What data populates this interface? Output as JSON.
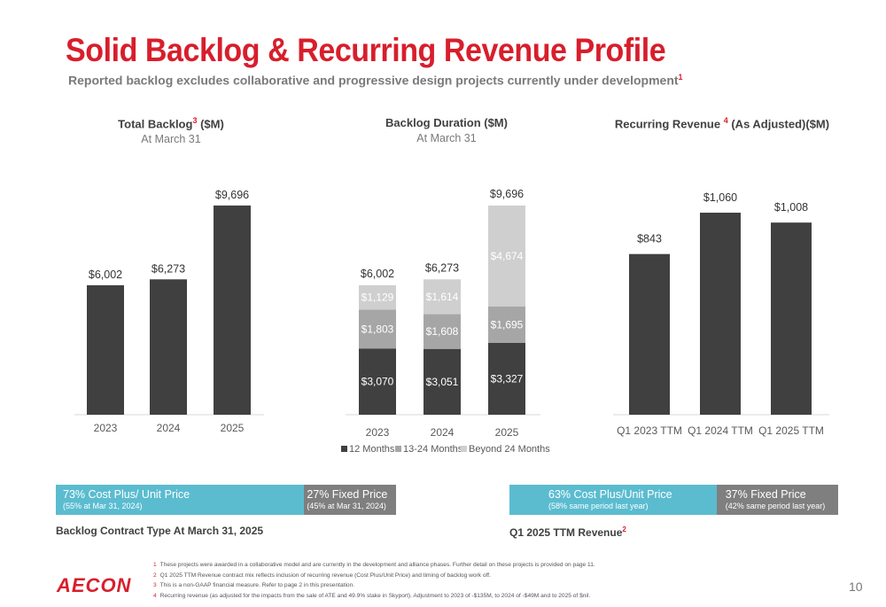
{
  "title": "Solid Backlog & Recurring Revenue Profile",
  "subtitle": "Reported backlog excludes collaborative and progressive design projects currently under development",
  "subtitle_note": "1",
  "colors": {
    "dark": "#404040",
    "mid": "#a6a6a6",
    "light": "#d0cfd0",
    "accent": "#d81e2c",
    "teal": "#5bbcd0",
    "gray": "#7f7f7f"
  },
  "chart_data": [
    {
      "type": "bar",
      "title": "Total Backlog",
      "title_note": "3",
      "title_suffix": " ($M)",
      "subtitle": "At March 31",
      "categories": [
        "2023",
        "2024",
        "2025"
      ],
      "values": [
        6002,
        6273,
        9696
      ],
      "labels": [
        "$6,002",
        "$6,273",
        "$9,696"
      ],
      "ylim": [
        0,
        10000
      ]
    },
    {
      "type": "bar",
      "stacked": true,
      "title": "Backlog Duration ($M)",
      "subtitle": "At March 31",
      "categories": [
        "2023",
        "2024",
        "2025"
      ],
      "series": [
        {
          "name": "12 Months",
          "values": [
            3070,
            3051,
            3327
          ],
          "labels": [
            "$3,070",
            "$3,051",
            "$3,327"
          ]
        },
        {
          "name": "13-24 Months",
          "values": [
            1803,
            1608,
            1695
          ],
          "labels": [
            "$1,803",
            "$1,608",
            "$1,695"
          ]
        },
        {
          "name": "Beyond 24 Months",
          "values": [
            1129,
            1614,
            4674
          ],
          "labels": [
            "$1,129",
            "$1,614",
            "$4,674"
          ]
        }
      ],
      "totals": [
        "$6,002",
        "$6,273",
        "$9,696"
      ],
      "legend": "bottom",
      "ylim": [
        0,
        10000
      ]
    },
    {
      "type": "bar",
      "title": "Recurring Revenue ",
      "title_note": "4",
      "title_suffix": " (As Adjusted)($M)",
      "categories": [
        "Q1 2023 TTM",
        "Q1 2024 TTM",
        "Q1 2025 TTM"
      ],
      "values": [
        843,
        1060,
        1008
      ],
      "labels": [
        "$843",
        "$1,060",
        "$1,008"
      ],
      "ylim": [
        0,
        1200
      ]
    }
  ],
  "backlog_mix": {
    "cost_plus": {
      "share": 0.73,
      "label": "73% Cost Plus/ Unit Price",
      "sub": "(55% at Mar 31, 2024)"
    },
    "fixed": {
      "share": 0.27,
      "label": "27% Fixed Price",
      "sub": "(45% at Mar 31, 2024)"
    },
    "caption": "Backlog Contract Type At March 31, 2025"
  },
  "revenue_mix": {
    "cost_plus": {
      "share": 0.63,
      "label": "63% Cost Plus/Unit Price",
      "sub": "(58% same period last year)"
    },
    "fixed": {
      "share": 0.37,
      "label": "37% Fixed Price",
      "sub": "(42% same period last year)"
    },
    "caption": "Q1 2025 TTM Revenue",
    "caption_note": "2"
  },
  "footnotes": [
    {
      "n": "1",
      "text": "These projects were awarded in a collaborative model and are currently in the development and alliance phases. Further detail on these projects is provided on page 11."
    },
    {
      "n": "2",
      "text": "Q1 2025 TTM Revenue contract mix reflects inclusion of recurring revenue (Cost Plus/Unit Price) and timing of backlog work off."
    },
    {
      "n": "3",
      "text": "This is a non-GAAP financial measure. Refer to page 2 in this presentation."
    },
    {
      "n": "4",
      "text": "Recurring revenue (as adjusted for the impacts from the sale of ATE and 49.9% stake in Skyport). Adjustment to 2023 of -$135M, to 2024 of -$49M and to 2025 of $nil."
    }
  ],
  "logo": "AECON",
  "page_number": "10"
}
